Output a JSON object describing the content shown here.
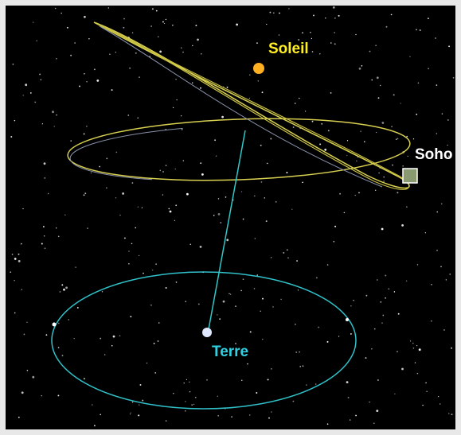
{
  "labels": {
    "sun": "Soleil",
    "soho": "Soho",
    "earth": "Terre"
  }
}
